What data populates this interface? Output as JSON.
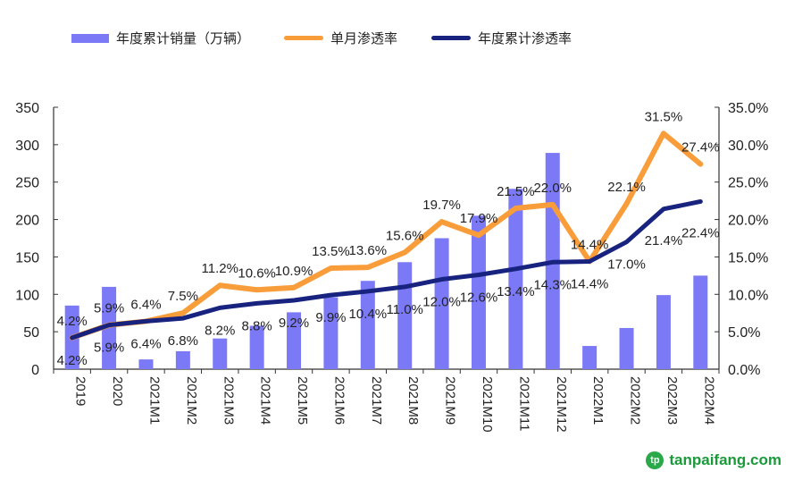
{
  "legend": {
    "bar": "年度累计销量（万辆）",
    "monthly": "单月渗透率",
    "cumulative": "年度累计渗透率"
  },
  "watermark": "tanpaifang.com",
  "chart_data": {
    "type": "bar",
    "categories": [
      "2019",
      "2020",
      "2021M1",
      "2021M2",
      "2021M3",
      "2021M4",
      "2021M5",
      "2021M6",
      "2021M7",
      "2021M8",
      "2021M9",
      "2021M10",
      "2021M11",
      "2021M12",
      "2022M1",
      "2022M2",
      "2022M3",
      "2022M4"
    ],
    "series": [
      {
        "name": "年度累计销量（万辆）",
        "type": "bar",
        "axis": "left",
        "color": "#7b79f6",
        "values": [
          85,
          110,
          13,
          24,
          41,
          58,
          76,
          96,
          118,
          143,
          175,
          205,
          241,
          289,
          31,
          55,
          99,
          125
        ]
      },
      {
        "name": "单月渗透率",
        "type": "line",
        "axis": "right",
        "color": "#f99d3a",
        "values": [
          4.2,
          5.9,
          6.4,
          7.5,
          11.2,
          10.6,
          10.9,
          13.5,
          13.6,
          15.6,
          19.7,
          17.9,
          21.5,
          22.0,
          14.4,
          22.1,
          31.5,
          27.4
        ]
      },
      {
        "name": "年度累计渗透率",
        "type": "line",
        "axis": "right",
        "color": "#17237e",
        "values": [
          4.2,
          5.9,
          6.4,
          6.8,
          8.2,
          8.8,
          9.2,
          9.9,
          10.4,
          11.0,
          12.0,
          12.6,
          13.4,
          14.3,
          14.4,
          17.0,
          21.4,
          22.4
        ]
      }
    ],
    "y_left": {
      "range": [
        0,
        350
      ],
      "ticks": [
        "0",
        "50",
        "100",
        "150",
        "200",
        "250",
        "300",
        "350"
      ]
    },
    "y_right": {
      "range": [
        0,
        35
      ],
      "ticks": [
        "0.0%",
        "5.0%",
        "10.0%",
        "15.0%",
        "20.0%",
        "25.0%",
        "30.0%",
        "35.0%"
      ]
    },
    "grid": false,
    "legend_position": "top"
  }
}
